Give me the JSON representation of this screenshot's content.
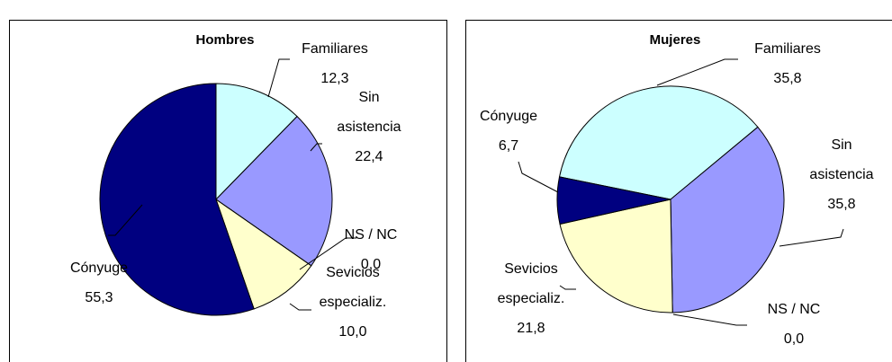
{
  "chart_data": [
    {
      "type": "pie",
      "title": "Hombres",
      "categories": [
        "Familiares",
        "Sin asistencia",
        "NS / NC",
        "Sevicios especializ.",
        "Cónyuge"
      ],
      "values": [
        12.3,
        22.4,
        0.0,
        10.0,
        55.3
      ],
      "value_labels": [
        "12,3",
        "22,4",
        "0,0",
        "10,0",
        "55,3"
      ],
      "colors": [
        "#ccffff",
        "#9999ff",
        "#ffffff",
        "#ffffcc",
        "#000080"
      ]
    },
    {
      "type": "pie",
      "title": "Mujeres",
      "categories": [
        "Familiares",
        "Sin asistencia",
        "NS / NC",
        "Sevicios especializ.",
        "Cónyuge"
      ],
      "values": [
        35.8,
        35.8,
        0.0,
        21.8,
        6.7
      ],
      "value_labels": [
        "35,8",
        "35,8",
        "0,0",
        "21,8",
        "6,7"
      ],
      "colors": [
        "#ccffff",
        "#9999ff",
        "#ffffff",
        "#ffffcc",
        "#000080"
      ]
    }
  ]
}
